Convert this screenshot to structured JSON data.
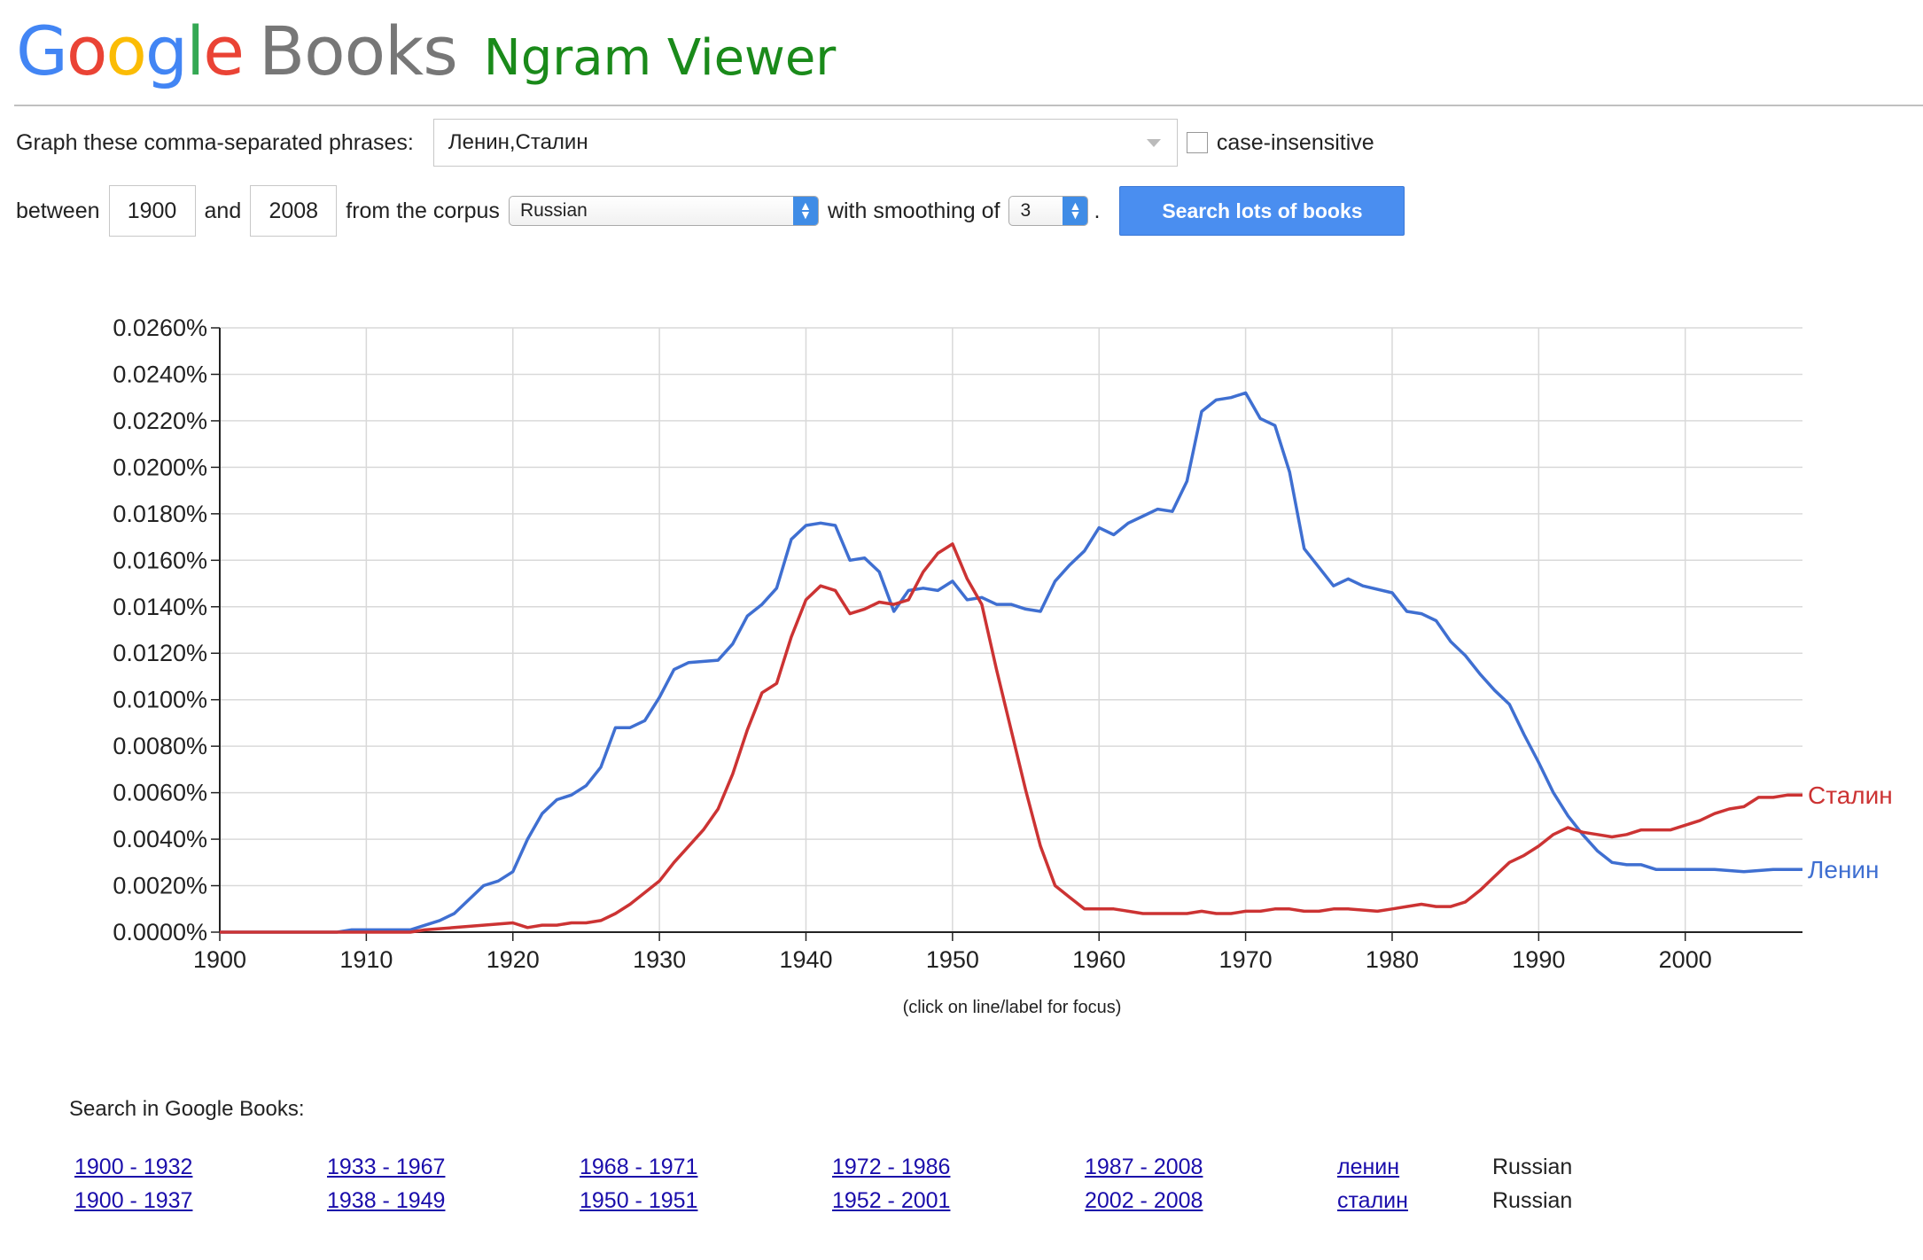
{
  "header": {
    "logo_text": "Google",
    "logo_books": "Books",
    "app_title": "Ngram Viewer"
  },
  "form": {
    "phrases_label": "Graph these comma-separated phrases:",
    "phrases_value": "Ленин,Сталин",
    "case_insensitive_label": "case-insensitive",
    "between_label": "between",
    "start_year": "1900",
    "and_label": "and",
    "end_year": "2008",
    "corpus_label": "from the corpus",
    "corpus_value": "Russian",
    "smoothing_label": "with smoothing of",
    "smoothing_value": "3",
    "period": ".",
    "search_button": "Search lots of books"
  },
  "chart_data": {
    "type": "line",
    "title": "",
    "xlabel": "",
    "ylabel": "",
    "xlim": [
      1900,
      2008
    ],
    "ylim": [
      0,
      0.026
    ],
    "grid": true,
    "y_ticks": [
      "0.0000%",
      "0.0020%",
      "0.0040%",
      "0.0060%",
      "0.0080%",
      "0.0100%",
      "0.0120%",
      "0.0140%",
      "0.0160%",
      "0.0180%",
      "0.0200%",
      "0.0220%",
      "0.0240%",
      "0.0260%"
    ],
    "x_ticks": [
      "1900",
      "1910",
      "1920",
      "1930",
      "1940",
      "1950",
      "1960",
      "1970",
      "1980",
      "1990",
      "2000"
    ],
    "note": "(click on line/label for focus)",
    "series": [
      {
        "name": "Ленин",
        "color": "#3f6fd1",
        "points": [
          [
            1900,
            0.0
          ],
          [
            1905,
            0.0
          ],
          [
            1908,
            0.0
          ],
          [
            1909,
            0.0001
          ],
          [
            1913,
            0.0001
          ],
          [
            1915,
            0.0005
          ],
          [
            1916,
            0.0008
          ],
          [
            1918,
            0.002
          ],
          [
            1919,
            0.0022
          ],
          [
            1920,
            0.0026
          ],
          [
            1921,
            0.004
          ],
          [
            1922,
            0.0051
          ],
          [
            1923,
            0.0057
          ],
          [
            1924,
            0.0059
          ],
          [
            1925,
            0.0063
          ],
          [
            1926,
            0.0071
          ],
          [
            1927,
            0.0088
          ],
          [
            1928,
            0.0088
          ],
          [
            1929,
            0.0091
          ],
          [
            1930,
            0.0101
          ],
          [
            1931,
            0.0113
          ],
          [
            1932,
            0.0116
          ],
          [
            1934,
            0.0117
          ],
          [
            1935,
            0.0124
          ],
          [
            1936,
            0.0136
          ],
          [
            1937,
            0.0141
          ],
          [
            1938,
            0.0148
          ],
          [
            1939,
            0.0169
          ],
          [
            1940,
            0.0175
          ],
          [
            1941,
            0.0176
          ],
          [
            1942,
            0.0175
          ],
          [
            1943,
            0.016
          ],
          [
            1944,
            0.0161
          ],
          [
            1945,
            0.0155
          ],
          [
            1946,
            0.0138
          ],
          [
            1947,
            0.0147
          ],
          [
            1948,
            0.0148
          ],
          [
            1949,
            0.0147
          ],
          [
            1950,
            0.0151
          ],
          [
            1951,
            0.0143
          ],
          [
            1952,
            0.0144
          ],
          [
            1953,
            0.0141
          ],
          [
            1954,
            0.0141
          ],
          [
            1955,
            0.0139
          ],
          [
            1956,
            0.0138
          ],
          [
            1957,
            0.0151
          ],
          [
            1958,
            0.0158
          ],
          [
            1959,
            0.0164
          ],
          [
            1960,
            0.0174
          ],
          [
            1961,
            0.0171
          ],
          [
            1962,
            0.0176
          ],
          [
            1963,
            0.0179
          ],
          [
            1964,
            0.0182
          ],
          [
            1965,
            0.0181
          ],
          [
            1966,
            0.0194
          ],
          [
            1967,
            0.0224
          ],
          [
            1968,
            0.0229
          ],
          [
            1969,
            0.023
          ],
          [
            1970,
            0.0232
          ],
          [
            1971,
            0.0221
          ],
          [
            1972,
            0.0218
          ],
          [
            1973,
            0.0198
          ],
          [
            1974,
            0.0165
          ],
          [
            1975,
            0.0157
          ],
          [
            1976,
            0.0149
          ],
          [
            1977,
            0.0152
          ],
          [
            1978,
            0.0149
          ],
          [
            1980,
            0.0146
          ],
          [
            1981,
            0.0138
          ],
          [
            1982,
            0.0137
          ],
          [
            1983,
            0.0134
          ],
          [
            1984,
            0.0125
          ],
          [
            1985,
            0.0119
          ],
          [
            1986,
            0.0111
          ],
          [
            1987,
            0.0104
          ],
          [
            1988,
            0.0098
          ],
          [
            1989,
            0.0085
          ],
          [
            1990,
            0.0073
          ],
          [
            1991,
            0.006
          ],
          [
            1992,
            0.005
          ],
          [
            1993,
            0.0042
          ],
          [
            1994,
            0.0035
          ],
          [
            1995,
            0.003
          ],
          [
            1996,
            0.0029
          ],
          [
            1997,
            0.0029
          ],
          [
            1998,
            0.0027
          ],
          [
            2000,
            0.0027
          ],
          [
            2002,
            0.0027
          ],
          [
            2004,
            0.0026
          ],
          [
            2006,
            0.0027
          ],
          [
            2007,
            0.0027
          ],
          [
            2008,
            0.0027
          ]
        ]
      },
      {
        "name": "Сталин",
        "color": "#cc3333",
        "points": [
          [
            1900,
            0.0
          ],
          [
            1912,
            0.0
          ],
          [
            1913,
            0.0
          ],
          [
            1914,
            0.0001
          ],
          [
            1916,
            0.0002
          ],
          [
            1918,
            0.0003
          ],
          [
            1920,
            0.0004
          ],
          [
            1921,
            0.0002
          ],
          [
            1922,
            0.0003
          ],
          [
            1923,
            0.0003
          ],
          [
            1924,
            0.0004
          ],
          [
            1925,
            0.0004
          ],
          [
            1926,
            0.0005
          ],
          [
            1927,
            0.0008
          ],
          [
            1928,
            0.0012
          ],
          [
            1929,
            0.0017
          ],
          [
            1930,
            0.0022
          ],
          [
            1931,
            0.003
          ],
          [
            1932,
            0.0037
          ],
          [
            1933,
            0.0044
          ],
          [
            1934,
            0.0053
          ],
          [
            1935,
            0.0068
          ],
          [
            1936,
            0.0087
          ],
          [
            1937,
            0.0103
          ],
          [
            1938,
            0.0107
          ],
          [
            1939,
            0.0127
          ],
          [
            1940,
            0.0143
          ],
          [
            1941,
            0.0149
          ],
          [
            1942,
            0.0147
          ],
          [
            1943,
            0.0137
          ],
          [
            1944,
            0.0139
          ],
          [
            1945,
            0.0142
          ],
          [
            1946,
            0.0141
          ],
          [
            1947,
            0.0143
          ],
          [
            1948,
            0.0155
          ],
          [
            1949,
            0.0163
          ],
          [
            1950,
            0.0167
          ],
          [
            1951,
            0.0152
          ],
          [
            1952,
            0.0141
          ],
          [
            1953,
            0.0113
          ],
          [
            1954,
            0.0087
          ],
          [
            1955,
            0.0061
          ],
          [
            1956,
            0.0037
          ],
          [
            1957,
            0.002
          ],
          [
            1958,
            0.0015
          ],
          [
            1959,
            0.001
          ],
          [
            1960,
            0.001
          ],
          [
            1961,
            0.001
          ],
          [
            1962,
            0.0009
          ],
          [
            1963,
            0.0008
          ],
          [
            1964,
            0.0008
          ],
          [
            1966,
            0.0008
          ],
          [
            1967,
            0.0009
          ],
          [
            1968,
            0.0008
          ],
          [
            1969,
            0.0008
          ],
          [
            1970,
            0.0009
          ],
          [
            1971,
            0.0009
          ],
          [
            1972,
            0.001
          ],
          [
            1973,
            0.001
          ],
          [
            1974,
            0.0009
          ],
          [
            1975,
            0.0009
          ],
          [
            1976,
            0.001
          ],
          [
            1977,
            0.001
          ],
          [
            1979,
            0.0009
          ],
          [
            1980,
            0.001
          ],
          [
            1981,
            0.0011
          ],
          [
            1982,
            0.0012
          ],
          [
            1983,
            0.0011
          ],
          [
            1984,
            0.0011
          ],
          [
            1985,
            0.0013
          ],
          [
            1986,
            0.0018
          ],
          [
            1987,
            0.0024
          ],
          [
            1988,
            0.003
          ],
          [
            1989,
            0.0033
          ],
          [
            1990,
            0.0037
          ],
          [
            1991,
            0.0042
          ],
          [
            1992,
            0.0045
          ],
          [
            1993,
            0.0043
          ],
          [
            1994,
            0.0042
          ],
          [
            1995,
            0.0041
          ],
          [
            1996,
            0.0042
          ],
          [
            1997,
            0.0044
          ],
          [
            1998,
            0.0044
          ],
          [
            1999,
            0.0044
          ],
          [
            2000,
            0.0046
          ],
          [
            2001,
            0.0048
          ],
          [
            2002,
            0.0051
          ],
          [
            2003,
            0.0053
          ],
          [
            2004,
            0.0054
          ],
          [
            2005,
            0.0058
          ],
          [
            2006,
            0.0058
          ],
          [
            2007,
            0.0059
          ],
          [
            2008,
            0.0059
          ]
        ]
      }
    ]
  },
  "books_search": {
    "title": "Search in Google Books:",
    "rows": [
      {
        "ranges": [
          "1900 - 1932",
          "1933 - 1967",
          "1968 - 1971",
          "1972 - 1986",
          "1987 - 2008"
        ],
        "word": "ленин",
        "corpus": "Russian"
      },
      {
        "ranges": [
          "1900 - 1937",
          "1938 - 1949",
          "1950 - 1951",
          "1952 - 2001",
          "2002 - 2008"
        ],
        "word": "сталин",
        "corpus": "Russian"
      }
    ]
  }
}
